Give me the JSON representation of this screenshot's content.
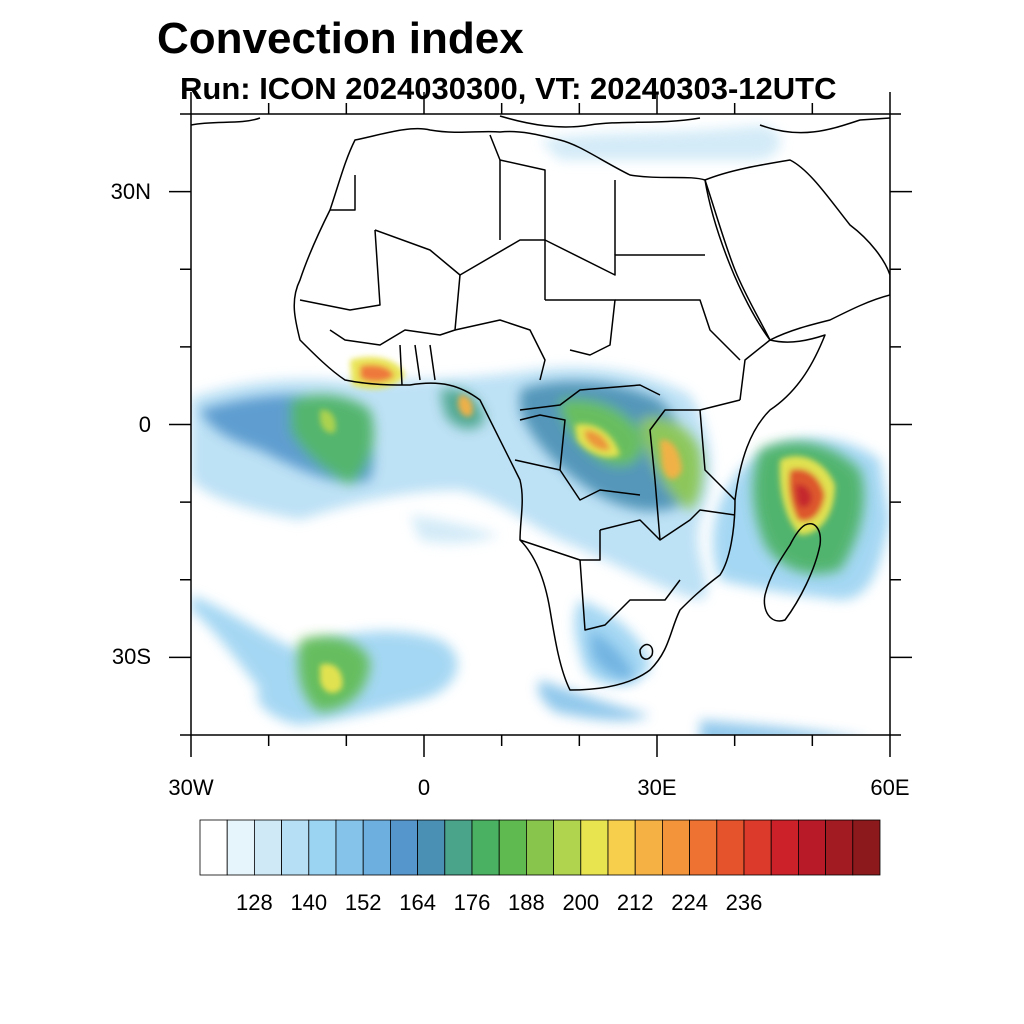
{
  "title": "Convection index",
  "subtitle": "Run: ICON 2024030300,  VT: 20240303-12UTC",
  "map": {
    "region": "Africa",
    "lon_range": [
      -30,
      60
    ],
    "lat_range": [
      -40,
      40
    ],
    "lat_ticks": [
      {
        "value": 30,
        "label": "30N"
      },
      {
        "value": 0,
        "label": "0"
      },
      {
        "value": -30,
        "label": "30S"
      }
    ],
    "lon_ticks": [
      {
        "value": -30,
        "label": "30W"
      },
      {
        "value": 0,
        "label": "0"
      },
      {
        "value": 30,
        "label": "30E"
      },
      {
        "value": 60,
        "label": "60E"
      }
    ]
  },
  "colorbar": {
    "levels": [
      122,
      128,
      134,
      140,
      146,
      152,
      158,
      164,
      170,
      176,
      182,
      188,
      194,
      200,
      206,
      212,
      218,
      224,
      230,
      236
    ],
    "labels": [
      "128",
      "140",
      "152",
      "164",
      "176",
      "188",
      "200",
      "212",
      "224",
      "236"
    ],
    "colors": [
      "#ffffff",
      "#e6f4fb",
      "#cfe9f7",
      "#b6def4",
      "#9bd3f2",
      "#86c3ea",
      "#6db0e0",
      "#5596cc",
      "#4a8fb4",
      "#4aa48a",
      "#49b161",
      "#5fbb4f",
      "#88c54c",
      "#b0d44e",
      "#e8e450",
      "#f8cf4d",
      "#f6b144",
      "#f4943a",
      "#ee7232",
      "#e5532c",
      "#dc3a2a",
      "#cc2129",
      "#b81b27",
      "#a31b22",
      "#8c1a1c"
    ]
  },
  "convection_areas": [
    {
      "name": "west-african-coast",
      "lon": -8,
      "lat": 7,
      "intensity": 200
    },
    {
      "name": "gulf-of-guinea",
      "lon": -13,
      "lat": 1,
      "intensity": 170
    },
    {
      "name": "congo-basin",
      "lon": 20,
      "lat": -2,
      "intensity": 190
    },
    {
      "name": "great-lakes",
      "lon": 29,
      "lat": -5,
      "intensity": 200
    },
    {
      "name": "mozambique-channel",
      "lon": 48,
      "lat": -9,
      "intensity": 215
    },
    {
      "name": "south-atlantic-band",
      "lon": -13,
      "lat": -33,
      "intensity": 180
    },
    {
      "name": "south-africa-east",
      "lon": 27,
      "lat": -30,
      "intensity": 160
    }
  ]
}
